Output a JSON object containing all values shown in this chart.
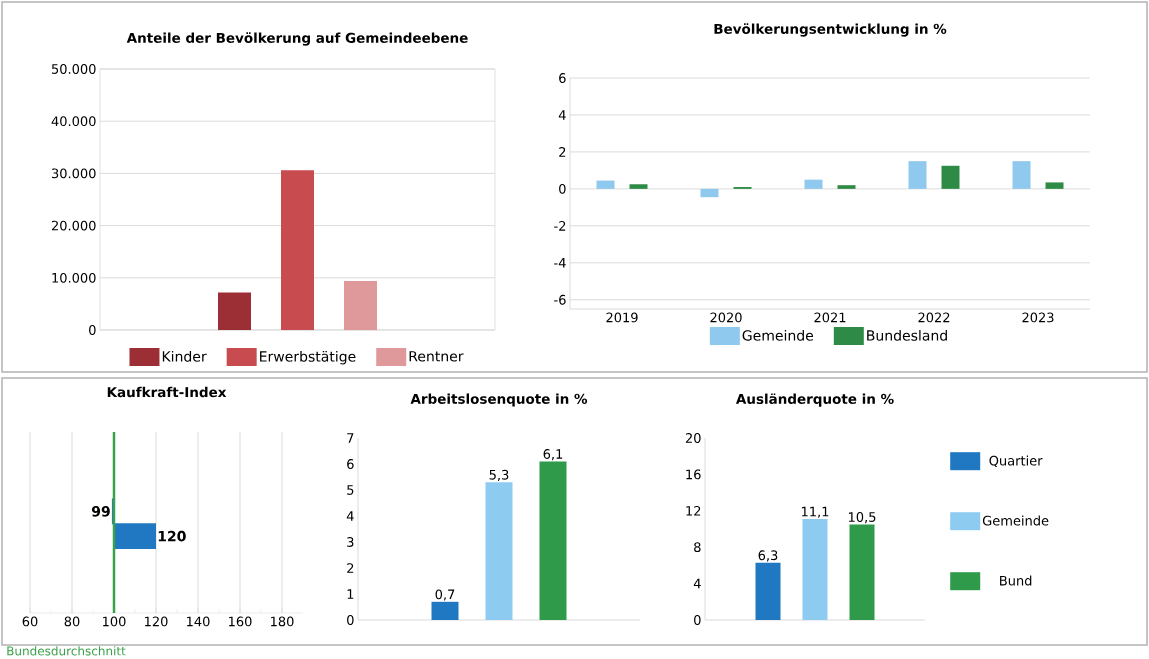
{
  "chart_data": [
    {
      "type": "bar",
      "title": "Anteile der Bevölkerung auf Gemeindeebene",
      "categories": [
        null
      ],
      "series": [
        {
          "name": "Kinder",
          "color": "#9b2f35",
          "values": [
            7200
          ]
        },
        {
          "name": "Erwerbstätige",
          "color": "#c84b4f",
          "values": [
            30600
          ]
        },
        {
          "name": "Rentner",
          "color": "#e0999b",
          "values": [
            9400
          ]
        }
      ],
      "ylim": [
        0,
        50000
      ],
      "yticks": [
        0,
        {
          "value": 10000,
          "label": "10.000"
        },
        {
          "value": 20000,
          "label": "20.000"
        },
        {
          "value": 30000,
          "label": "30.000"
        },
        {
          "value": 40000,
          "label": "40.000"
        },
        {
          "value": 50000,
          "label": "50.000"
        }
      ],
      "grid": "y",
      "legend": "bottom"
    },
    {
      "type": "bar",
      "title": "Bevölkerungsentwicklung in %",
      "categories": [
        "2019",
        "2020",
        "2021",
        "2022",
        "2023"
      ],
      "series": [
        {
          "name": "Gemeinde",
          "color": "#90c9ee",
          "values": [
            0.45,
            -0.45,
            0.5,
            1.5,
            1.5
          ]
        },
        {
          "name": "Bundesland",
          "color": "#2e8b46",
          "values": [
            0.25,
            0.1,
            0.2,
            1.25,
            0.35
          ]
        }
      ],
      "ylim": [
        -6.5,
        6
      ],
      "yticks": [
        -6,
        -4,
        -2,
        0,
        2,
        4,
        6
      ],
      "grid": "y",
      "legend": "bottom"
    },
    {
      "type": "bar",
      "title": "Kaufkraft-Index",
      "orientation": "horizontal",
      "categories": [
        null,
        null
      ],
      "values": [
        -1,
        20
      ],
      "base": [
        100,
        100
      ],
      "value_labels": [
        "99",
        "120"
      ],
      "color": "#1f78c1",
      "xlim": [
        60,
        190
      ],
      "xticks": [
        60,
        80,
        100,
        120,
        140,
        160,
        180
      ],
      "grid": "x",
      "ref_lines": [
        {
          "axis": "x",
          "value": 100,
          "label": "Bundesdurchschnitt",
          "color": "#3aa04a"
        }
      ]
    },
    {
      "type": "bar",
      "title": "Arbeitslosenquote in %",
      "categories": [
        null
      ],
      "series": [
        {
          "color": "#1f78c1",
          "values": [
            0.7
          ],
          "value_labels": [
            "0,7"
          ]
        },
        {
          "color": "#8ecbf0",
          "values": [
            5.3
          ],
          "value_labels": [
            "5,3"
          ]
        },
        {
          "color": "#2e9a4a",
          "values": [
            6.1
          ],
          "value_labels": [
            "6,1"
          ]
        }
      ],
      "ylim": [
        0,
        7
      ],
      "yticks": [
        0,
        1,
        2,
        3,
        4,
        5,
        6,
        7
      ]
    },
    {
      "type": "bar",
      "title": "Ausländerquote in %",
      "categories": [
        null
      ],
      "series": [
        {
          "name": "Quartier",
          "color": "#1f78c1",
          "values": [
            6.3
          ],
          "value_labels": [
            "6,3"
          ]
        },
        {
          "name": "Gemeinde",
          "color": "#8ecbf0",
          "values": [
            11.1
          ],
          "value_labels": [
            "11,1"
          ]
        },
        {
          "name": "Bund",
          "color": "#2e9a4a",
          "values": [
            10.5
          ],
          "value_labels": [
            "10,5"
          ]
        }
      ],
      "ylim": [
        0,
        20
      ],
      "yticks": [
        0,
        4,
        8,
        12,
        16,
        20
      ],
      "legend": "right"
    }
  ]
}
